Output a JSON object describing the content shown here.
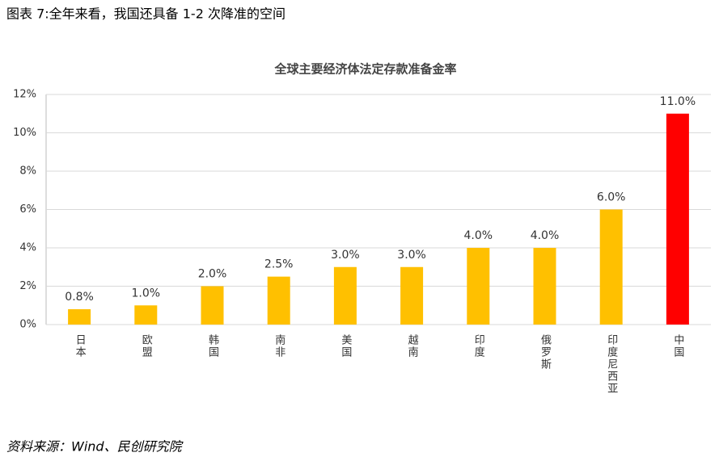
{
  "caption": "图表 7:全年来看，我国还具备 1-2 次降准的空间",
  "chart_data": {
    "type": "bar",
    "title": "全球主要经济体法定存款准备金率",
    "categories": [
      "日本",
      "欧盟",
      "韩国",
      "南非",
      "美国",
      "越南",
      "印度",
      "俄罗斯",
      "印度尼西亚",
      "中国"
    ],
    "values": [
      0.8,
      1.0,
      2.0,
      2.5,
      3.0,
      3.0,
      4.0,
      4.0,
      6.0,
      11.0
    ],
    "value_labels": [
      "0.8%",
      "1.0%",
      "2.0%",
      "2.5%",
      "3.0%",
      "3.0%",
      "4.0%",
      "4.0%",
      "6.0%",
      "11.0%"
    ],
    "colors": [
      "#ffc000",
      "#ffc000",
      "#ffc000",
      "#ffc000",
      "#ffc000",
      "#ffc000",
      "#ffc000",
      "#ffc000",
      "#ffc000",
      "#ff0000"
    ],
    "ylim": [
      0,
      12
    ],
    "yticks": [
      {
        "value": 0,
        "label": "0%"
      },
      {
        "value": 2,
        "label": "2%"
      },
      {
        "value": 4,
        "label": "4%"
      },
      {
        "value": 6,
        "label": "6%"
      },
      {
        "value": 8,
        "label": "8%"
      },
      {
        "value": 10,
        "label": "10%"
      },
      {
        "value": 12,
        "label": "12%"
      }
    ],
    "grid": true
  },
  "source": "资料来源：Wind、民创研究院"
}
